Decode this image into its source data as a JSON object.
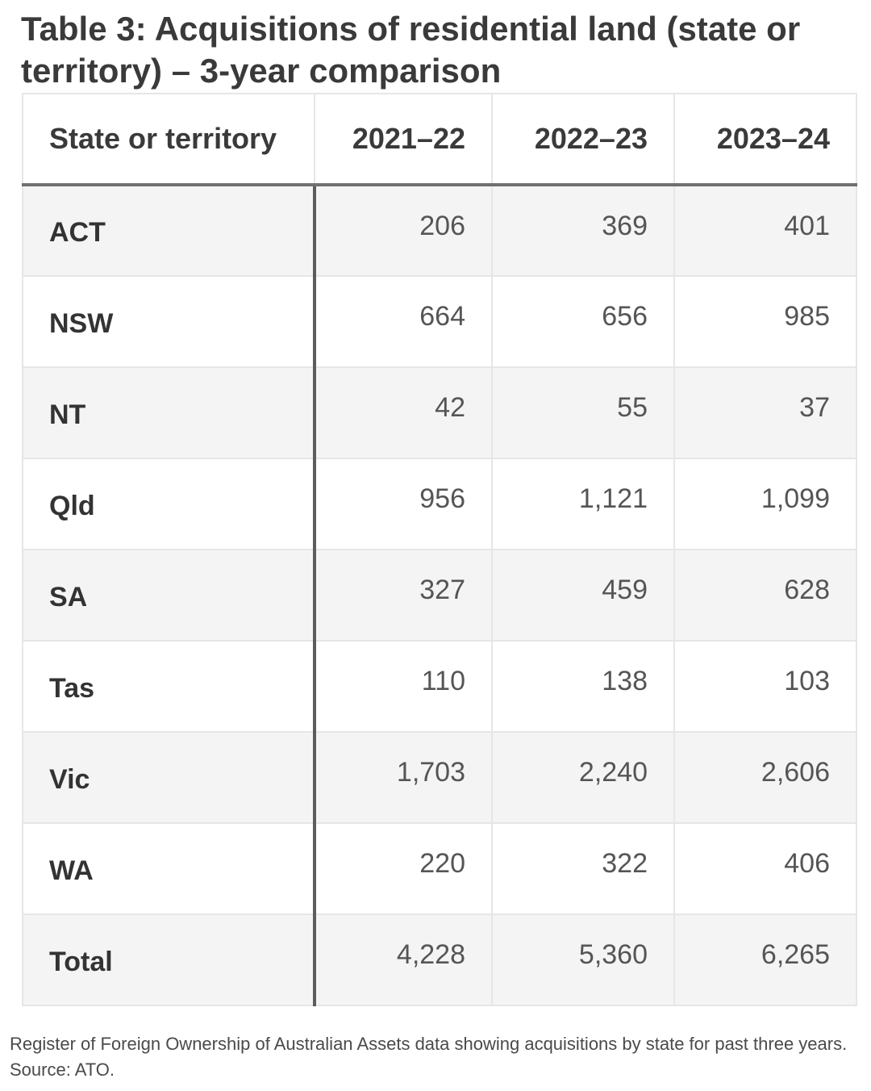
{
  "title": "Table 3: Acquisitions of residential land (state or territory) – 3-year comparison",
  "table": {
    "headers": [
      "State or territory",
      "2021–22",
      "2022–23",
      "2023–24"
    ],
    "rows": [
      {
        "state": "ACT",
        "values": [
          "206",
          "369",
          "401"
        ]
      },
      {
        "state": "NSW",
        "values": [
          "664",
          "656",
          "985"
        ]
      },
      {
        "state": "NT",
        "values": [
          "42",
          "55",
          "37"
        ]
      },
      {
        "state": "Qld",
        "values": [
          "956",
          "1,121",
          "1,099"
        ]
      },
      {
        "state": "SA",
        "values": [
          "327",
          "459",
          "628"
        ]
      },
      {
        "state": "Tas",
        "values": [
          "110",
          "138",
          "103"
        ]
      },
      {
        "state": "Vic",
        "values": [
          "1,703",
          "2,240",
          "2,606"
        ]
      },
      {
        "state": "WA",
        "values": [
          "220",
          "322",
          "406"
        ]
      },
      {
        "state": "Total",
        "values": [
          "4,228",
          "5,360",
          "6,265"
        ]
      }
    ]
  },
  "caption": "Register of Foreign Ownership of Australian Assets data showing acquisitions by state for past three years. Source: ATO."
}
